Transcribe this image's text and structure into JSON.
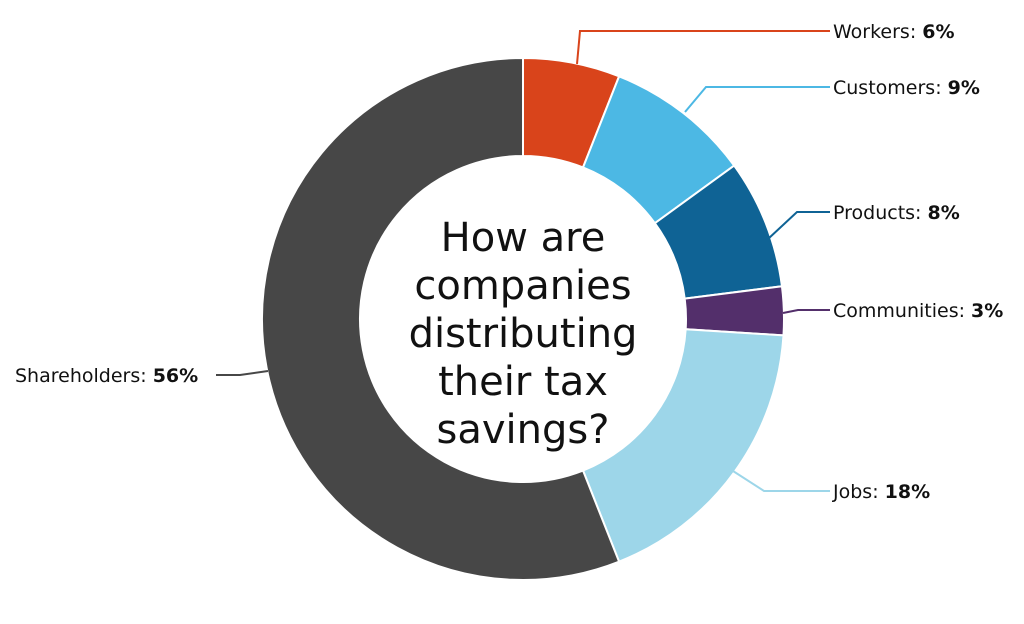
{
  "chart_data": {
    "type": "pie",
    "variant": "donut",
    "title_lines": [
      "How are",
      "companies",
      "distributing",
      "their tax",
      "savings?"
    ],
    "slices": [
      {
        "label": "Workers:",
        "value_label": "6%",
        "value": 6,
        "color": "#d9441b"
      },
      {
        "label": "Customers:",
        "value_label": "9%",
        "value": 9,
        "color": "#4cb8e4"
      },
      {
        "label": "Products:",
        "value_label": "8%",
        "value": 8,
        "color": "#0f6395"
      },
      {
        "label": "Communities:",
        "value_label": "3%",
        "value": 3,
        "color": "#532f6b"
      },
      {
        "label": "Jobs:",
        "value_label": "18%",
        "value": 18,
        "color": "#9dd6e9"
      },
      {
        "label": "Shareholders:",
        "value_label": "56%",
        "value": 56,
        "color": "#474747"
      }
    ]
  }
}
